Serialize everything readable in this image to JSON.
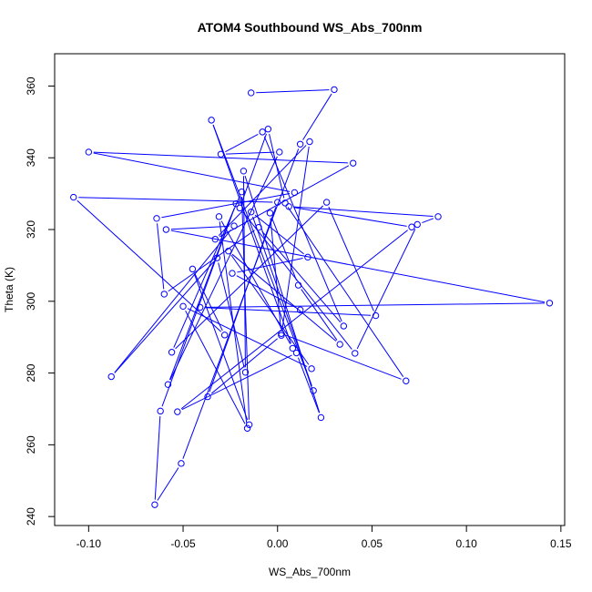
{
  "chart_data": {
    "type": "line",
    "title": "ATOM4 Southbound WS_Abs_700nm",
    "xlabel": "WS_Abs_700nm",
    "ylabel": "Theta (K)",
    "xlim": [
      -0.118,
      0.152
    ],
    "ylim": [
      237.5,
      369
    ],
    "xticks": [
      -0.1,
      -0.05,
      0.0,
      0.05,
      0.1,
      0.15
    ],
    "xtick_labels": [
      "-0.10",
      "-0.05",
      "0.00",
      "0.05",
      "0.10",
      "0.15"
    ],
    "yticks": [
      240,
      260,
      280,
      300,
      320,
      340,
      360
    ],
    "ytick_labels": [
      "240",
      "260",
      "280",
      "300",
      "320",
      "340",
      "360"
    ],
    "grid": false,
    "legend": "none",
    "color": "#0000ff",
    "markers": "open-circle",
    "series": [
      {
        "x": [
          -0.014,
          0.03,
          0.012,
          -0.051,
          -0.065,
          -0.062,
          -0.022,
          -0.058,
          0.001,
          -0.03,
          -0.008,
          0.035,
          -0.01,
          -0.06,
          -0.064,
          0.009,
          -0.1,
          0.04,
          -0.033,
          0.017,
          0.002,
          -0.037,
          0.0,
          -0.108,
          -0.028,
          -0.045,
          -0.015,
          -0.019,
          -0.056,
          0.026,
          0.052,
          -0.041,
          0.144,
          -0.059,
          -0.023,
          -0.088,
          -0.032,
          -0.017,
          -0.018,
          0.023,
          0.01,
          -0.053,
          0.071,
          0.006,
          0.085,
          0.074,
          0.041,
          -0.02,
          -0.005,
          0.004,
          0.068,
          0.002,
          -0.004,
          0.011,
          0.033,
          -0.026,
          0.018,
          -0.05,
          -0.016,
          -0.031,
          0.008,
          -0.035,
          0.019,
          -0.014,
          0.016,
          -0.024,
          0.012
        ],
        "y": [
          358.1,
          359.0,
          343.8,
          254.8,
          243.3,
          269.4,
          327.2,
          276.8,
          341.6,
          341.0,
          347.2,
          293.1,
          320.6,
          302.0,
          323.1,
          330.3,
          341.6,
          338.5,
          317.3,
          344.5,
          290.5,
          273.4,
          327.6,
          329.0,
          290.6,
          309.0,
          265.6,
          330.5,
          285.8,
          327.6,
          296.0,
          298.3,
          299.5,
          320.0,
          321.0,
          279.0,
          312.1,
          280.2,
          336.3,
          267.6,
          285.6,
          269.2,
          320.7,
          326.4,
          323.6,
          321.4,
          285.5,
          326.0,
          348.0,
          327.4,
          277.8,
          291.0,
          324.6,
          304.5,
          288.0,
          314.0,
          281.2,
          298.6,
          264.6,
          323.6,
          286.9,
          350.5,
          275.1,
          324.9,
          312.3,
          307.8,
          297.6
        ]
      }
    ]
  }
}
